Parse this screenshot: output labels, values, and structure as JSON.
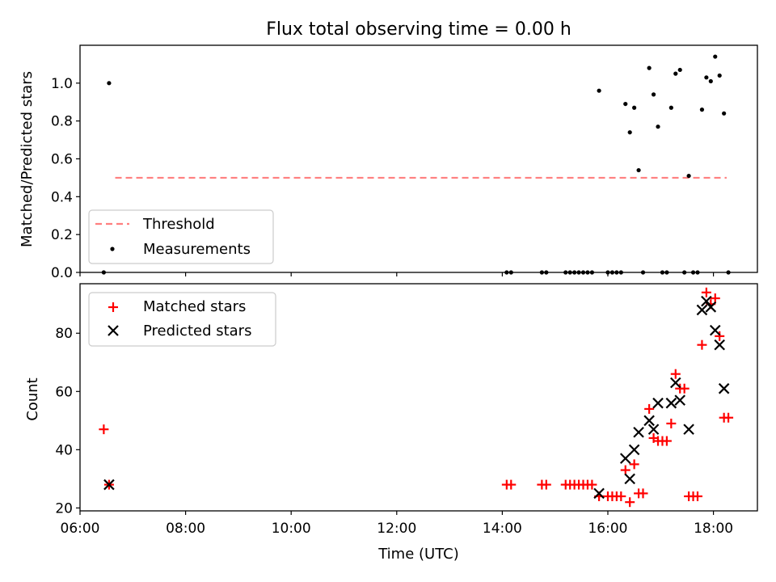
{
  "chart_data": [
    {
      "type": "scatter",
      "title": "Flux total observing time = 0.00 h",
      "ylabel": "Matched/Predicted stars",
      "xlabel": "",
      "ylim": [
        0.0,
        1.2
      ],
      "yticks": [
        "0.0",
        "0.2",
        "0.4",
        "0.6",
        "0.8",
        "1.0"
      ],
      "legend_position": "lower-left",
      "threshold": {
        "name": "Threshold",
        "value": 0.5,
        "x_range": [
          "06:40",
          "18:15"
        ],
        "color": "#ff7f7f",
        "style": "dashed"
      },
      "series": [
        {
          "name": "Measurements",
          "marker": "dot",
          "color": "#000000",
          "points": [
            [
              "06:27",
              0.0
            ],
            [
              "06:33",
              1.0
            ],
            [
              "14:05",
              0.0
            ],
            [
              "14:10",
              0.0
            ],
            [
              "14:45",
              0.0
            ],
            [
              "14:50",
              0.0
            ],
            [
              "15:12",
              0.0
            ],
            [
              "15:17",
              0.0
            ],
            [
              "15:22",
              0.0
            ],
            [
              "15:27",
              0.0
            ],
            [
              "15:32",
              0.0
            ],
            [
              "15:37",
              0.0
            ],
            [
              "15:42",
              0.0
            ],
            [
              "15:50",
              0.96
            ],
            [
              "16:00",
              0.0
            ],
            [
              "16:05",
              0.0
            ],
            [
              "16:10",
              0.0
            ],
            [
              "16:15",
              0.0
            ],
            [
              "16:20",
              0.89
            ],
            [
              "16:25",
              0.74
            ],
            [
              "16:30",
              0.87
            ],
            [
              "16:35",
              0.54
            ],
            [
              "16:40",
              0.0
            ],
            [
              "16:47",
              1.08
            ],
            [
              "16:52",
              0.94
            ],
            [
              "16:57",
              0.77
            ],
            [
              "17:02",
              0.0
            ],
            [
              "17:07",
              0.0
            ],
            [
              "17:12",
              0.87
            ],
            [
              "17:17",
              1.05
            ],
            [
              "17:22",
              1.07
            ],
            [
              "17:27",
              0.0
            ],
            [
              "17:32",
              0.51
            ],
            [
              "17:37",
              0.0
            ],
            [
              "17:42",
              0.0
            ],
            [
              "17:47",
              0.86
            ],
            [
              "17:52",
              1.03
            ],
            [
              "17:57",
              1.01
            ],
            [
              "18:02",
              1.14
            ],
            [
              "18:07",
              1.04
            ],
            [
              "18:12",
              0.84
            ],
            [
              "18:17",
              0.0
            ]
          ]
        }
      ]
    },
    {
      "type": "scatter",
      "title": "",
      "xlabel": "Time (UTC)",
      "ylabel": "Count",
      "ylim": [
        19,
        97
      ],
      "xlim": [
        "06:00",
        "18:50"
      ],
      "yticks": [
        "20",
        "40",
        "60",
        "80"
      ],
      "xticks": [
        "06:00",
        "08:00",
        "10:00",
        "12:00",
        "14:00",
        "16:00",
        "18:00"
      ],
      "legend_position": "upper-left",
      "series": [
        {
          "name": "Matched stars",
          "marker": "plus",
          "color": "#ff0000",
          "points": [
            [
              "06:27",
              47
            ],
            [
              "06:33",
              28
            ],
            [
              "14:05",
              28
            ],
            [
              "14:10",
              28
            ],
            [
              "14:45",
              28
            ],
            [
              "14:50",
              28
            ],
            [
              "15:12",
              28
            ],
            [
              "15:17",
              28
            ],
            [
              "15:22",
              28
            ],
            [
              "15:27",
              28
            ],
            [
              "15:32",
              28
            ],
            [
              "15:37",
              28
            ],
            [
              "15:42",
              28
            ],
            [
              "15:50",
              24
            ],
            [
              "16:00",
              24
            ],
            [
              "16:05",
              24
            ],
            [
              "16:10",
              24
            ],
            [
              "16:15",
              24
            ],
            [
              "16:20",
              33
            ],
            [
              "16:25",
              22
            ],
            [
              "16:30",
              35
            ],
            [
              "16:35",
              25
            ],
            [
              "16:40",
              25
            ],
            [
              "16:47",
              54
            ],
            [
              "16:52",
              44
            ],
            [
              "16:57",
              43
            ],
            [
              "17:02",
              43
            ],
            [
              "17:07",
              43
            ],
            [
              "17:12",
              49
            ],
            [
              "17:17",
              66
            ],
            [
              "17:22",
              61
            ],
            [
              "17:27",
              61
            ],
            [
              "17:32",
              24
            ],
            [
              "17:37",
              24
            ],
            [
              "17:42",
              24
            ],
            [
              "17:47",
              76
            ],
            [
              "17:52",
              94
            ],
            [
              "17:57",
              90
            ],
            [
              "18:02",
              92
            ],
            [
              "18:07",
              79
            ],
            [
              "18:12",
              51
            ],
            [
              "18:17",
              51
            ]
          ]
        },
        {
          "name": "Predicted stars",
          "marker": "x",
          "color": "#000000",
          "points": [
            [
              "06:33",
              28
            ],
            [
              "15:50",
              25
            ],
            [
              "16:20",
              37
            ],
            [
              "16:25",
              30
            ],
            [
              "16:30",
              40
            ],
            [
              "16:35",
              46
            ],
            [
              "16:47",
              50
            ],
            [
              "16:52",
              47
            ],
            [
              "16:57",
              56
            ],
            [
              "17:12",
              56
            ],
            [
              "17:17",
              63
            ],
            [
              "17:22",
              57
            ],
            [
              "17:32",
              47
            ],
            [
              "17:47",
              88
            ],
            [
              "17:52",
              91
            ],
            [
              "17:57",
              89
            ],
            [
              "18:02",
              81
            ],
            [
              "18:07",
              76
            ],
            [
              "18:12",
              61
            ]
          ]
        }
      ]
    }
  ]
}
